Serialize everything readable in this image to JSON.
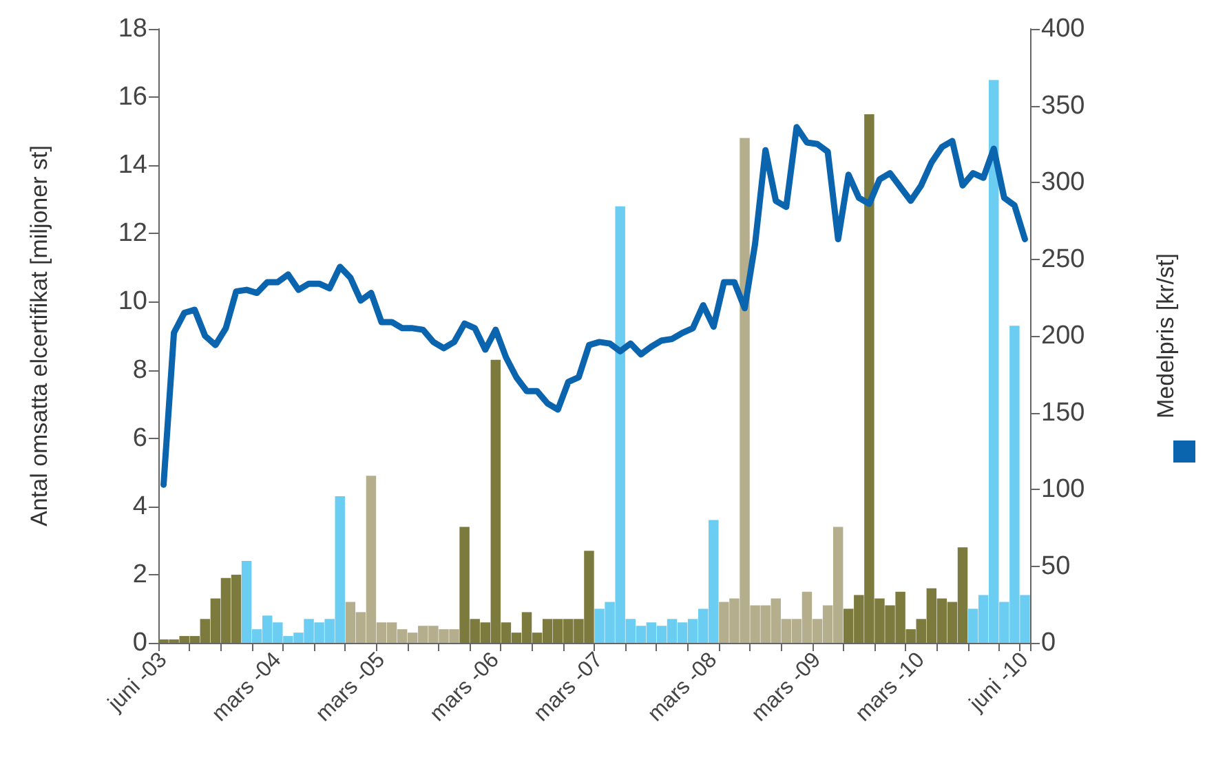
{
  "chart_data": {
    "type": "bar",
    "ylabel": "Antal omsatta elcertifikat [miljoner st]",
    "y2label": "Medelpris [kr/st]",
    "categories": [
      "juni -03",
      null,
      null,
      null,
      null,
      null,
      null,
      null,
      null,
      null,
      null,
      "mars -04",
      null,
      null,
      null,
      null,
      null,
      null,
      null,
      null,
      null,
      "mars -05",
      null,
      null,
      null,
      null,
      null,
      null,
      null,
      null,
      null,
      null,
      "mars -06",
      null,
      null,
      null,
      null,
      null,
      null,
      null,
      null,
      null,
      "mars -07",
      null,
      null,
      null,
      null,
      null,
      null,
      null,
      null,
      null,
      null,
      "mars -08",
      null,
      null,
      null,
      null,
      null,
      null,
      null,
      null,
      null,
      "mars -09",
      null,
      null,
      null,
      null,
      null,
      null,
      null,
      null,
      null,
      "mars -10",
      null,
      null,
      null,
      null,
      null,
      null,
      null,
      null,
      null,
      "juni -10"
    ],
    "series": [
      {
        "values": [
          0.1,
          0.1,
          0.2,
          0.2,
          0.7,
          1.3,
          1.9,
          2.0,
          2.4,
          0.4,
          0.8,
          0.6,
          0.2,
          0.3,
          0.7,
          0.6,
          0.7,
          4.3,
          1.2,
          0.9,
          4.9,
          0.6,
          0.6,
          0.4,
          0.3,
          0.5,
          0.5,
          0.4,
          0.4,
          3.4,
          0.7,
          0.6,
          8.3,
          0.6,
          0.3,
          0.9,
          0.3,
          0.7,
          0.7,
          0.7,
          0.7,
          2.7,
          1.0,
          1.2,
          12.8,
          0.7,
          0.5,
          0.6,
          0.5,
          0.7,
          0.6,
          0.7,
          1.0,
          3.6,
          1.2,
          1.3,
          14.8,
          1.1,
          1.1,
          1.3,
          0.7,
          0.7,
          1.5,
          0.7,
          1.1,
          3.4,
          1.0,
          1.4,
          15.5,
          1.3,
          1.1,
          1.5,
          0.4,
          0.7,
          1.6,
          1.3,
          1.2,
          2.8,
          1.0,
          1.4,
          16.5,
          1.2,
          9.3,
          1.4
        ],
        "colors": [
          "#7d7a3e",
          "#7d7a3e",
          "#7d7a3e",
          "#7d7a3e",
          "#7d7a3e",
          "#7d7a3e",
          "#7d7a3e",
          "#7d7a3e",
          "#6ccdf3",
          "#6ccdf3",
          "#6ccdf3",
          "#6ccdf3",
          "#6ccdf3",
          "#6ccdf3",
          "#6ccdf3",
          "#6ccdf3",
          "#6ccdf3",
          "#6ccdf3",
          "#b5ae8c",
          "#b5ae8c",
          "#b5ae8c",
          "#b5ae8c",
          "#b5ae8c",
          "#b5ae8c",
          "#b5ae8c",
          "#b5ae8c",
          "#b5ae8c",
          "#b5ae8c",
          "#b5ae8c",
          "#7d7a3e",
          "#7d7a3e",
          "#7d7a3e",
          "#7d7a3e",
          "#7d7a3e",
          "#7d7a3e",
          "#7d7a3e",
          "#7d7a3e",
          "#7d7a3e",
          "#7d7a3e",
          "#7d7a3e",
          "#7d7a3e",
          "#7d7a3e",
          "#6ccdf3",
          "#6ccdf3",
          "#6ccdf3",
          "#6ccdf3",
          "#6ccdf3",
          "#6ccdf3",
          "#6ccdf3",
          "#6ccdf3",
          "#6ccdf3",
          "#6ccdf3",
          "#6ccdf3",
          "#6ccdf3",
          "#b5ae8c",
          "#b5ae8c",
          "#b5ae8c",
          "#b5ae8c",
          "#b5ae8c",
          "#b5ae8c",
          "#b5ae8c",
          "#b5ae8c",
          "#b5ae8c",
          "#b5ae8c",
          "#b5ae8c",
          "#b5ae8c",
          "#7d7a3e",
          "#7d7a3e",
          "#7d7a3e",
          "#7d7a3e",
          "#7d7a3e",
          "#7d7a3e",
          "#7d7a3e",
          "#7d7a3e",
          "#7d7a3e",
          "#7d7a3e",
          "#7d7a3e",
          "#7d7a3e",
          "#6ccdf3",
          "#6ccdf3",
          "#6ccdf3",
          "#6ccdf3",
          "#6ccdf3",
          "#6ccdf3"
        ]
      },
      {
        "type": "line",
        "axis": "y2",
        "color": "#0a64ae",
        "values": [
          103,
          202,
          215,
          217,
          200,
          194,
          205,
          229,
          230,
          228,
          235,
          235,
          240,
          230,
          234,
          234,
          231,
          245,
          238,
          223,
          228,
          209,
          209,
          205,
          205,
          204,
          196,
          192,
          196,
          208,
          205,
          191,
          204,
          186,
          173,
          164,
          164,
          156,
          152,
          170,
          173,
          194,
          196,
          195,
          190,
          195,
          188,
          193,
          197,
          198,
          202,
          205,
          220,
          206,
          235,
          235,
          218,
          260,
          321,
          288,
          284,
          336,
          326,
          325,
          320,
          263,
          305,
          290,
          286,
          302,
          306,
          297,
          288,
          298,
          313,
          323,
          327,
          298,
          306,
          303,
          322,
          290,
          285,
          263
        ]
      }
    ],
    "ylim": [
      0,
      18
    ],
    "yticks": [
      0,
      2,
      4,
      6,
      8,
      10,
      12,
      14,
      16,
      18
    ],
    "y2lim": [
      0,
      400
    ],
    "y2ticks": [
      0,
      50,
      100,
      150,
      200,
      250,
      300,
      350,
      400
    ],
    "grid": false,
    "marker": "none",
    "line_style": "solid"
  }
}
